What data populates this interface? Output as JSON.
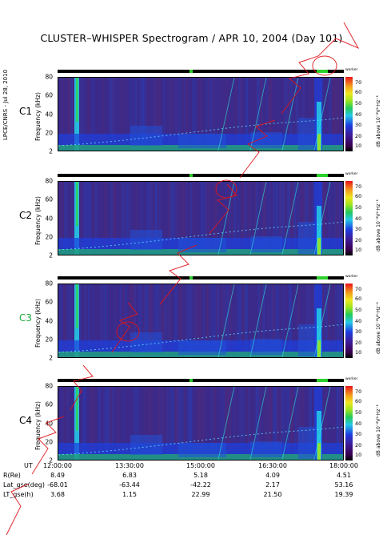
{
  "title": "CLUSTER–WHISPER Spectrogram / APR 10, 2004 (Day 101)",
  "side_label": "LPCE/CNRS - Jul 28, 2010",
  "status_label": "worker",
  "ylabel": "Frequency (kHz)",
  "colorbar_label": "dB above 10⁻⁸V²·Hz⁻¹",
  "colorbar_ticks": [
    "70",
    "60",
    "50",
    "40",
    "30",
    "20",
    "10"
  ],
  "colors": {
    "background": "#3b2a8a",
    "colorbar_high": "#e8121a",
    "colorbar_low": "#000000",
    "c3_label": "#1fa83a"
  },
  "chart_data": [
    {
      "type": "heatmap",
      "name": "C1",
      "label_color": "#000000",
      "ylabel": "Frequency (kHz)",
      "yticks": [
        "80",
        "60",
        "40",
        "20",
        "2"
      ],
      "ylim": [
        2,
        80
      ],
      "xlim": [
        "12:00:00",
        "18:00:00"
      ]
    },
    {
      "type": "heatmap",
      "name": "C2",
      "label_color": "#000000",
      "ylabel": "Frequency (kHz)",
      "yticks": [
        "80",
        "60",
        "40",
        "20",
        "2"
      ],
      "ylim": [
        2,
        80
      ],
      "xlim": [
        "12:00:00",
        "18:00:00"
      ]
    },
    {
      "type": "heatmap",
      "name": "C3",
      "label_color": "#1fa83a",
      "ylabel": "Frequency (kHz)",
      "yticks": [
        "80",
        "60",
        "40",
        "20",
        "2"
      ],
      "ylim": [
        2,
        80
      ],
      "xlim": [
        "12:00:00",
        "18:00:00"
      ]
    },
    {
      "type": "heatmap",
      "name": "C4",
      "label_color": "#000000",
      "ylabel": "Frequency (kHz)",
      "yticks": [
        "80",
        "60",
        "40",
        "20",
        "2"
      ],
      "ylim": [
        2,
        80
      ],
      "xlim": [
        "12:00:00",
        "18:00:00"
      ]
    }
  ],
  "x_axis": {
    "rows": [
      {
        "label": "UT",
        "values": [
          "12:00:00",
          "13:30:00",
          "15:00:00",
          "16:30:00",
          "18:00:00"
        ]
      },
      {
        "label": "R(Re)",
        "values": [
          "8.49",
          "6.83",
          "5.18",
          "4.09",
          "4.51"
        ]
      },
      {
        "label": "Lat_gse(deg)",
        "values": [
          "-68.01",
          "-63.44",
          "-42.22",
          "2.17",
          "53.16"
        ]
      },
      {
        "label": "LT_gse(h)",
        "values": [
          "3.68",
          "1.15",
          "22.99",
          "21.50",
          "19.39"
        ]
      }
    ]
  },
  "watermark": "NOT FOR PUBLICATION"
}
